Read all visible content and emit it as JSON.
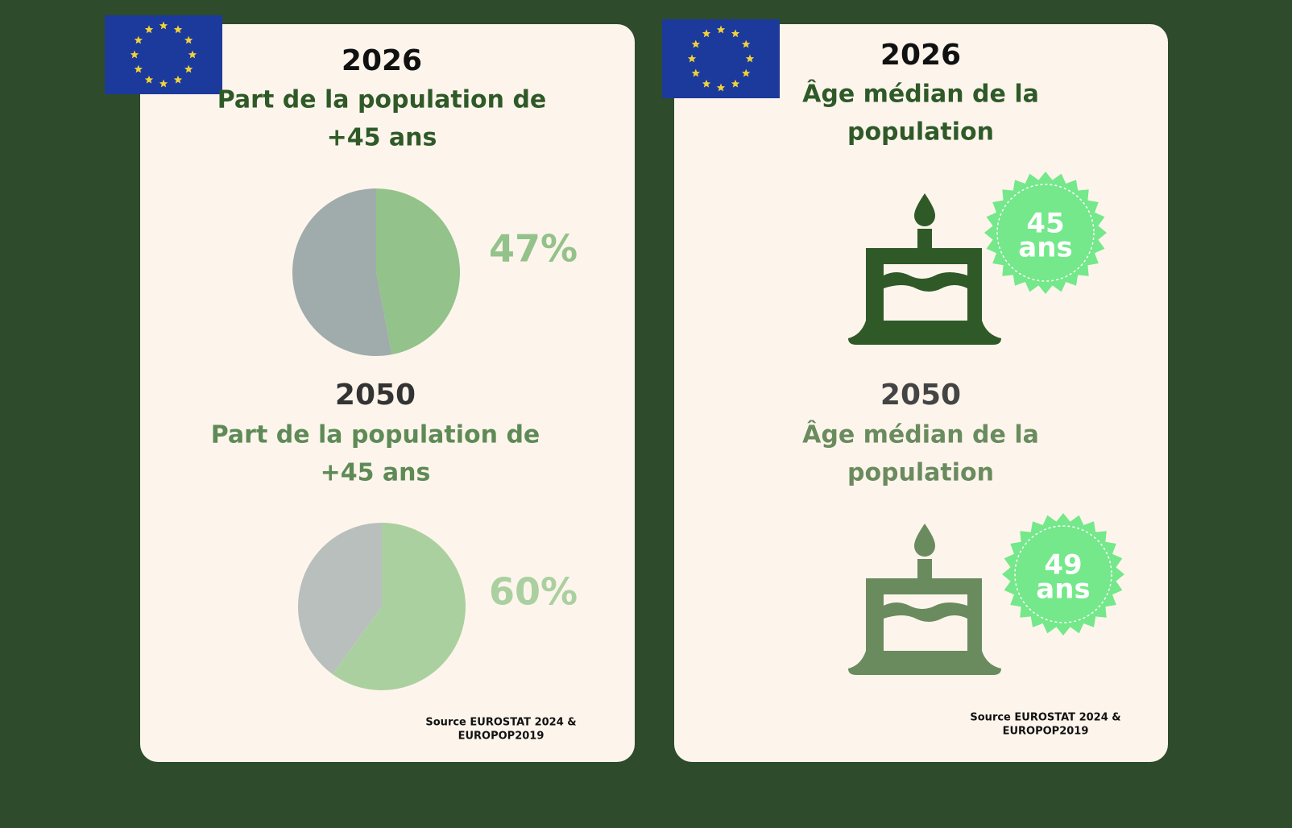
{
  "chart_data": [
    {
      "type": "pie",
      "title": "2026",
      "subtitle": [
        "Part de la population de",
        "+45 ans"
      ],
      "values": [
        47,
        53
      ],
      "value_labels": [
        "47%",
        null
      ],
      "colors": [
        "#93c28a",
        "#a0abab"
      ]
    },
    {
      "type": "pie",
      "title": "2050",
      "subtitle": [
        "Part de la population de",
        "+45 ans"
      ],
      "values": [
        60,
        40
      ],
      "value_labels": [
        "60%",
        null
      ],
      "colors": [
        "#abd0a0",
        "#b8bfbc"
      ]
    }
  ],
  "age_cards": [
    {
      "year": "2026",
      "title": [
        "Âge médian de la",
        "population"
      ],
      "badge": {
        "value": "45",
        "unit": "ans"
      }
    },
    {
      "year": "2050",
      "title": [
        "Âge médian de la",
        "population"
      ],
      "badge": {
        "value": "49",
        "unit": "ans"
      }
    }
  ],
  "sources": [
    [
      "Source EUROSTAT 2024 &",
      "EUROPOP2019"
    ],
    [
      "Source EUROSTAT 2024 &",
      "EUROPOP2019"
    ]
  ]
}
